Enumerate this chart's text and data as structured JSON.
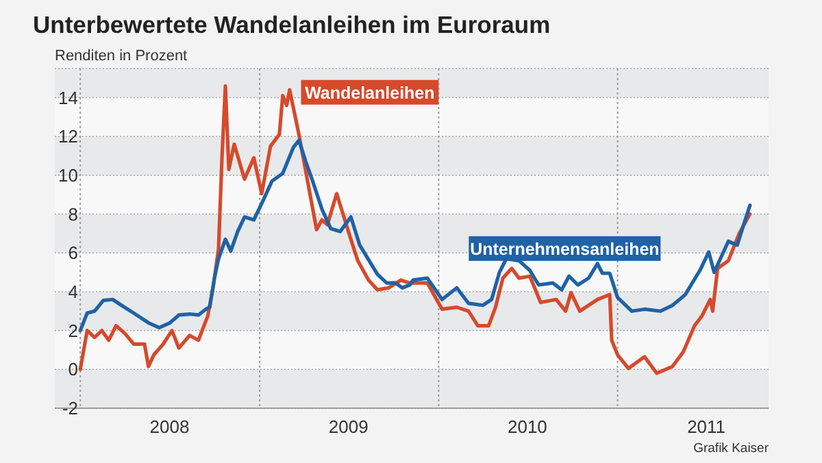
{
  "chart_data": {
    "type": "line",
    "title": "Unterbewertete Wandelanleihen im Euroraum",
    "subtitle": "Renditen in Prozent",
    "annotations": [
      "Grafik Kaiser"
    ],
    "xlim": [
      "2007-11-10",
      "2011-11-05"
    ],
    "xticks": [
      {
        "value": "2008-07-01",
        "label": "2008"
      },
      {
        "value": "2009-07-01",
        "label": "2009"
      },
      {
        "value": "2010-07-01",
        "label": "2010"
      },
      {
        "value": "2011-07-01",
        "label": "2011"
      }
    ],
    "ylim": [
      -2,
      15.5
    ],
    "yticks": [
      -2,
      0,
      2,
      4,
      6,
      8,
      10,
      12,
      14
    ],
    "grid": "y",
    "legend": false,
    "ref_lines": [
      {
        "axis": "x",
        "value": "2008-01-01",
        "color": "#9a9a9a",
        "line_style": "dotted"
      },
      {
        "axis": "x",
        "value": "2009-01-01",
        "color": "#9a9a9a",
        "line_style": "dotted"
      },
      {
        "axis": "x",
        "value": "2010-01-01",
        "color": "#9a9a9a",
        "line_style": "dotted"
      },
      {
        "axis": "x",
        "value": "2011-01-01",
        "color": "#9a9a9a",
        "line_style": "dotted"
      }
    ],
    "bands": [
      {
        "axis": "y",
        "from": -2,
        "to": 0,
        "color": "#e8e9eb"
      },
      {
        "axis": "y",
        "from": 2,
        "to": 4,
        "color": "#e8e9eb"
      },
      {
        "axis": "y",
        "from": 6,
        "to": 8,
        "color": "#e8e9eb"
      },
      {
        "axis": "y",
        "from": 10,
        "to": 12,
        "color": "#e8e9eb"
      },
      {
        "axis": "y",
        "from": 14,
        "to": 15.5,
        "color": "#e8e9eb"
      }
    ],
    "series": [
      {
        "name": "Wandelanleihen",
        "color": "#d54a2c",
        "x": [
          "2008-01-01",
          "2008-01-15",
          "2008-01-30",
          "2008-02-14",
          "2008-02-28",
          "2008-03-14",
          "2008-04-01",
          "2008-04-19",
          "2008-05-11",
          "2008-05-19",
          "2008-05-30",
          "2008-06-18",
          "2008-07-06",
          "2008-07-20",
          "2008-08-11",
          "2008-08-29",
          "2008-09-17",
          "2008-09-28",
          "2008-10-09",
          "2008-10-16",
          "2008-10-23",
          "2008-10-30",
          "2008-11-10",
          "2008-12-01",
          "2008-12-20",
          "2009-01-05",
          "2009-01-23",
          "2009-02-10",
          "2009-02-17",
          "2009-02-25",
          "2009-03-03",
          "2009-03-22",
          "2009-04-09",
          "2009-04-27",
          "2009-05-08",
          "2009-05-19",
          "2009-06-07",
          "2009-07-06",
          "2009-07-20",
          "2009-08-11",
          "2009-08-29",
          "2009-09-21",
          "2009-10-16",
          "2009-11-03",
          "2009-11-10",
          "2009-12-09",
          "2010-01-08",
          "2010-02-07",
          "2010-03-03",
          "2010-03-22",
          "2010-04-13",
          "2010-04-27",
          "2010-05-12",
          "2010-05-30",
          "2010-06-14",
          "2010-07-06",
          "2010-07-28",
          "2010-08-29",
          "2010-09-17",
          "2010-09-28",
          "2010-10-16",
          "2010-11-21",
          "2010-12-16",
          "2010-12-20",
          "2011-01-01",
          "2011-01-23",
          "2011-02-25",
          "2011-03-22",
          "2011-04-23",
          "2011-05-15",
          "2011-06-07",
          "2011-06-22",
          "2011-07-09",
          "2011-07-14",
          "2011-07-24",
          "2011-08-15",
          "2011-09-06",
          "2011-09-28"
        ],
        "values": [
          0.0,
          2.0,
          1.65,
          2.0,
          1.5,
          2.25,
          1.85,
          1.3,
          1.3,
          0.15,
          0.75,
          1.3,
          2.0,
          1.1,
          1.75,
          1.5,
          2.75,
          4.25,
          6.2,
          10.9,
          14.6,
          10.3,
          11.6,
          9.8,
          10.9,
          9.05,
          11.5,
          12.1,
          14.1,
          13.6,
          14.4,
          12.1,
          9.65,
          7.2,
          7.7,
          7.45,
          9.05,
          6.7,
          5.6,
          4.6,
          4.1,
          4.2,
          4.6,
          4.45,
          4.45,
          4.45,
          3.1,
          3.2,
          3.0,
          2.25,
          2.25,
          3.2,
          4.7,
          5.2,
          4.7,
          4.8,
          3.45,
          3.6,
          3.0,
          3.95,
          3.0,
          3.6,
          3.85,
          1.5,
          0.75,
          0.05,
          0.65,
          -0.2,
          0.15,
          0.9,
          2.25,
          2.75,
          3.6,
          3.0,
          5.2,
          5.6,
          7.0,
          8.0
        ]
      },
      {
        "name": "Unternehmensanleihen",
        "color": "#1f62a6",
        "x": [
          "2008-01-01",
          "2008-01-15",
          "2008-01-30",
          "2008-02-17",
          "2008-03-07",
          "2008-03-25",
          "2008-04-19",
          "2008-05-19",
          "2008-06-10",
          "2008-07-02",
          "2008-07-20",
          "2008-08-11",
          "2008-08-29",
          "2008-09-13",
          "2008-09-21",
          "2008-10-01",
          "2008-10-09",
          "2008-10-23",
          "2008-11-03",
          "2008-11-17",
          "2008-12-01",
          "2008-12-20",
          "2009-01-08",
          "2009-01-26",
          "2009-02-17",
          "2009-03-11",
          "2009-03-22",
          "2009-04-05",
          "2009-04-19",
          "2009-05-08",
          "2009-05-26",
          "2009-06-14",
          "2009-07-06",
          "2009-07-24",
          "2009-08-11",
          "2009-08-29",
          "2009-09-17",
          "2009-10-05",
          "2009-10-19",
          "2009-11-03",
          "2009-11-10",
          "2009-12-09",
          "2010-01-08",
          "2010-02-07",
          "2010-03-03",
          "2010-04-01",
          "2010-04-19",
          "2010-05-05",
          "2010-05-19",
          "2010-06-14",
          "2010-07-06",
          "2010-07-24",
          "2010-08-22",
          "2010-09-09",
          "2010-09-24",
          "2010-10-12",
          "2010-11-03",
          "2010-11-21",
          "2010-12-01",
          "2010-12-16",
          "2011-01-01",
          "2011-01-30",
          "2011-02-25",
          "2011-03-29",
          "2011-04-23",
          "2011-05-19",
          "2011-06-18",
          "2011-07-06",
          "2011-07-17",
          "2011-08-15",
          "2011-09-02",
          "2011-09-17",
          "2011-09-28"
        ],
        "values": [
          2.0,
          2.9,
          3.0,
          3.55,
          3.6,
          3.3,
          2.9,
          2.4,
          2.15,
          2.4,
          2.8,
          2.85,
          2.8,
          3.1,
          3.2,
          4.75,
          5.7,
          6.7,
          6.1,
          7.1,
          7.85,
          7.7,
          8.7,
          9.7,
          10.1,
          11.45,
          11.8,
          10.7,
          9.7,
          8.25,
          7.25,
          7.1,
          7.85,
          6.4,
          5.65,
          4.9,
          4.45,
          4.45,
          4.2,
          4.35,
          4.6,
          4.7,
          3.6,
          4.2,
          3.4,
          3.3,
          3.6,
          5.0,
          5.7,
          5.6,
          5.1,
          4.35,
          4.45,
          4.1,
          4.8,
          4.35,
          4.7,
          5.45,
          4.95,
          4.95,
          3.7,
          3.0,
          3.1,
          3.0,
          3.3,
          3.85,
          5.1,
          6.05,
          5.0,
          6.6,
          6.4,
          7.6,
          8.45
        ]
      }
    ]
  }
}
